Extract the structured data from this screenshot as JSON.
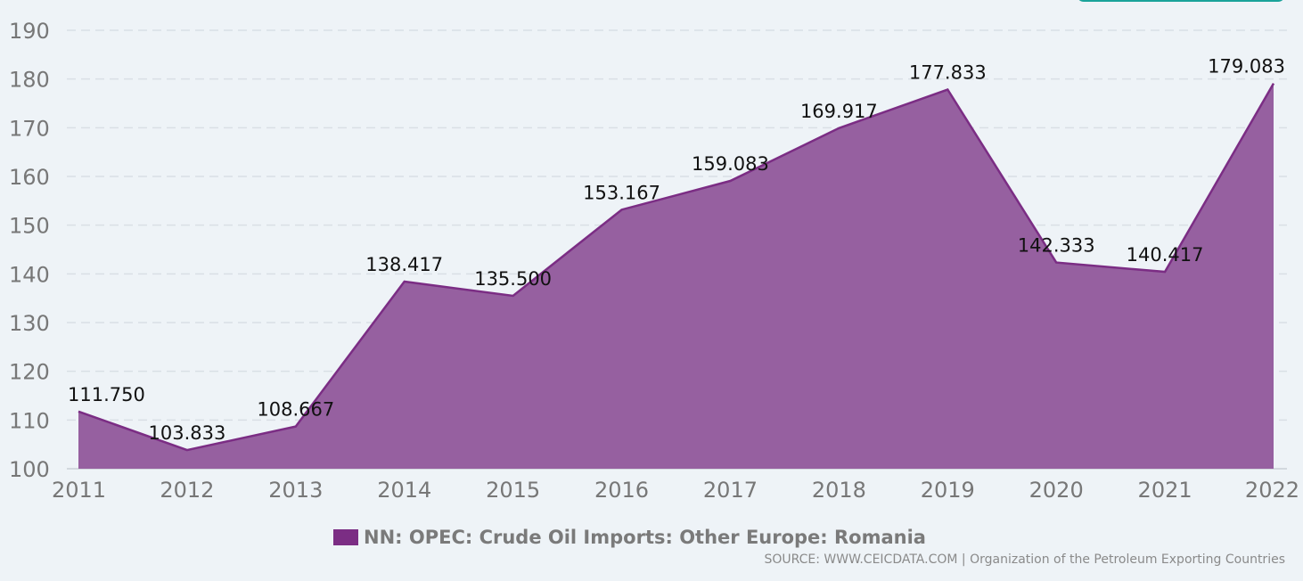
{
  "chart_data": {
    "type": "area",
    "x": [
      "2011",
      "2012",
      "2013",
      "2014",
      "2015",
      "2016",
      "2017",
      "2018",
      "2019",
      "2020",
      "2021",
      "2022"
    ],
    "series": [
      {
        "name": "NN: OPEC: Crude Oil Imports: Other Europe: Romania",
        "values": [
          111.75,
          103.833,
          108.667,
          138.417,
          135.5,
          153.167,
          159.083,
          169.917,
          177.833,
          142.333,
          140.417,
          179.083
        ],
        "color": "#7b2d84"
      }
    ],
    "data_labels": [
      "111.750",
      "103.833",
      "108.667",
      "138.417",
      "135.500",
      "153.167",
      "159.083",
      "169.917",
      "177.833",
      "142.333",
      "140.417",
      "179.083"
    ],
    "yticks": [
      "100",
      "110",
      "120",
      "130",
      "140",
      "150",
      "160",
      "170",
      "180",
      "190"
    ],
    "ylim": [
      100,
      190
    ],
    "grid": true,
    "legend_position": "bottom"
  },
  "legend": {
    "label": "NN: OPEC: Crude Oil Imports: Other Europe: Romania"
  },
  "source": "SOURCE: WWW.CEICDATA.COM | Organization of the Petroleum Exporting Countries",
  "colors": {
    "area_fill": "#9660a0",
    "area_stroke": "#7b2d84",
    "grid": "#d9dfe5",
    "background": "#eef3f7"
  }
}
